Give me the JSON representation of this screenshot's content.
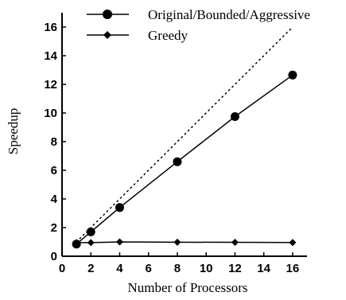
{
  "chart_data": {
    "type": "line",
    "xlabel": "Number of Processors",
    "ylabel": "Speedup",
    "xlim": [
      0,
      17
    ],
    "ylim": [
      0,
      17
    ],
    "xticks": [
      0,
      2,
      4,
      6,
      8,
      10,
      12,
      14,
      16
    ],
    "yticks": [
      0,
      2,
      4,
      6,
      8,
      10,
      12,
      14,
      16
    ],
    "xtick_labels": [
      "0",
      "2",
      "4",
      "6",
      "8",
      "10",
      "12",
      "14",
      "16"
    ],
    "ytick_labels": [
      "0",
      "2",
      "4",
      "6",
      "8",
      "10",
      "12",
      "14",
      "16"
    ],
    "grid": false,
    "legend_position": "top-right",
    "series": [
      {
        "name": "Original/Bounded/Aggressive",
        "marker": "circle",
        "line": "solid",
        "color": "#000000",
        "x": [
          1,
          2,
          4,
          8,
          12,
          16
        ],
        "y": [
          0.85,
          1.7,
          3.4,
          6.6,
          9.75,
          12.65
        ]
      },
      {
        "name": "Greedy",
        "marker": "diamond",
        "line": "solid",
        "color": "#000000",
        "x": [
          1,
          2,
          4,
          8,
          12,
          16
        ],
        "y": [
          0.95,
          0.95,
          1.0,
          0.98,
          0.97,
          0.96
        ]
      }
    ],
    "reference_line": {
      "style": "dotted",
      "x": [
        1,
        16
      ],
      "y": [
        1,
        16
      ]
    }
  }
}
